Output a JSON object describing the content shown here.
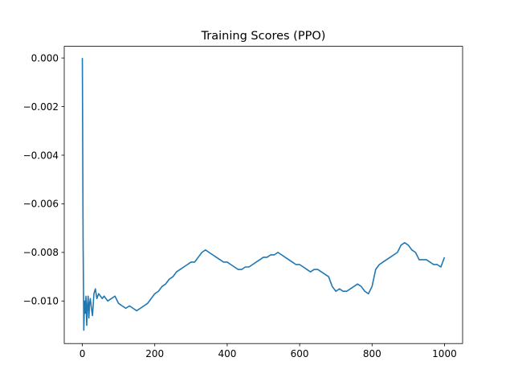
{
  "chart_data": {
    "type": "line",
    "title": "Training Scores (PPO)",
    "xlabel": "",
    "ylabel": "",
    "xlim": [
      -50,
      1050
    ],
    "ylim": [
      -0.01175,
      0.00048
    ],
    "xticks": [
      {
        "value": 0,
        "label": "0"
      },
      {
        "value": 200,
        "label": "200"
      },
      {
        "value": 400,
        "label": "400"
      },
      {
        "value": 600,
        "label": "600"
      },
      {
        "value": 800,
        "label": "800"
      },
      {
        "value": 1000,
        "label": "1000"
      }
    ],
    "yticks": [
      {
        "value": 0.0,
        "label": "0.000"
      },
      {
        "value": -0.002,
        "label": "−0.002"
      },
      {
        "value": -0.004,
        "label": "−0.004"
      },
      {
        "value": -0.006,
        "label": "−0.006"
      },
      {
        "value": -0.008,
        "label": "−0.008"
      },
      {
        "value": -0.01,
        "label": "−0.010"
      }
    ],
    "grid": false,
    "line_color": "#1f77b4",
    "series": [
      {
        "x": [
          0,
          2,
          4,
          6,
          8,
          10,
          12,
          14,
          16,
          18,
          20,
          22,
          25,
          28,
          32,
          36,
          40,
          45,
          50,
          55,
          60,
          70,
          80,
          90,
          100,
          110,
          120,
          130,
          140,
          150,
          160,
          170,
          180,
          190,
          200,
          210,
          220,
          230,
          240,
          250,
          260,
          270,
          280,
          290,
          300,
          310,
          320,
          330,
          340,
          350,
          360,
          370,
          380,
          390,
          400,
          410,
          420,
          430,
          440,
          450,
          460,
          470,
          480,
          490,
          500,
          510,
          520,
          530,
          540,
          550,
          560,
          570,
          580,
          590,
          600,
          610,
          620,
          630,
          640,
          650,
          660,
          670,
          680,
          690,
          700,
          710,
          720,
          730,
          740,
          750,
          760,
          770,
          780,
          790,
          800,
          810,
          820,
          830,
          840,
          850,
          860,
          870,
          880,
          890,
          900,
          910,
          920,
          930,
          940,
          950,
          960,
          970,
          980,
          990,
          1000
        ],
        "y": [
          0.0,
          -0.0075,
          -0.0112,
          -0.01,
          -0.0105,
          -0.0098,
          -0.011,
          -0.0102,
          -0.0098,
          -0.0107,
          -0.0101,
          -0.0099,
          -0.0103,
          -0.0106,
          -0.0097,
          -0.0095,
          -0.0099,
          -0.0097,
          -0.0098,
          -0.0099,
          -0.0098,
          -0.01,
          -0.0099,
          -0.0098,
          -0.0101,
          -0.0102,
          -0.0103,
          -0.0102,
          -0.0103,
          -0.0104,
          -0.0103,
          -0.0102,
          -0.0101,
          -0.0099,
          -0.0097,
          -0.0096,
          -0.0094,
          -0.0093,
          -0.0091,
          -0.009,
          -0.0088,
          -0.0087,
          -0.0086,
          -0.0085,
          -0.0084,
          -0.0084,
          -0.0082,
          -0.008,
          -0.0079,
          -0.008,
          -0.0081,
          -0.0082,
          -0.0083,
          -0.0084,
          -0.0084,
          -0.0085,
          -0.0086,
          -0.0087,
          -0.0087,
          -0.0086,
          -0.0086,
          -0.0085,
          -0.0084,
          -0.0083,
          -0.0082,
          -0.0082,
          -0.0081,
          -0.0081,
          -0.008,
          -0.0081,
          -0.0082,
          -0.0083,
          -0.0084,
          -0.0085,
          -0.0085,
          -0.0086,
          -0.0087,
          -0.0088,
          -0.0087,
          -0.0087,
          -0.0088,
          -0.0089,
          -0.009,
          -0.0094,
          -0.0096,
          -0.0095,
          -0.0096,
          -0.0096,
          -0.0095,
          -0.0094,
          -0.0093,
          -0.0094,
          -0.0096,
          -0.0097,
          -0.0094,
          -0.0087,
          -0.0085,
          -0.0084,
          -0.0083,
          -0.0082,
          -0.0081,
          -0.008,
          -0.0077,
          -0.0076,
          -0.0077,
          -0.0079,
          -0.008,
          -0.0083,
          -0.0083,
          -0.0083,
          -0.0084,
          -0.0085,
          -0.0085,
          -0.0086,
          -0.0082
        ]
      }
    ]
  }
}
